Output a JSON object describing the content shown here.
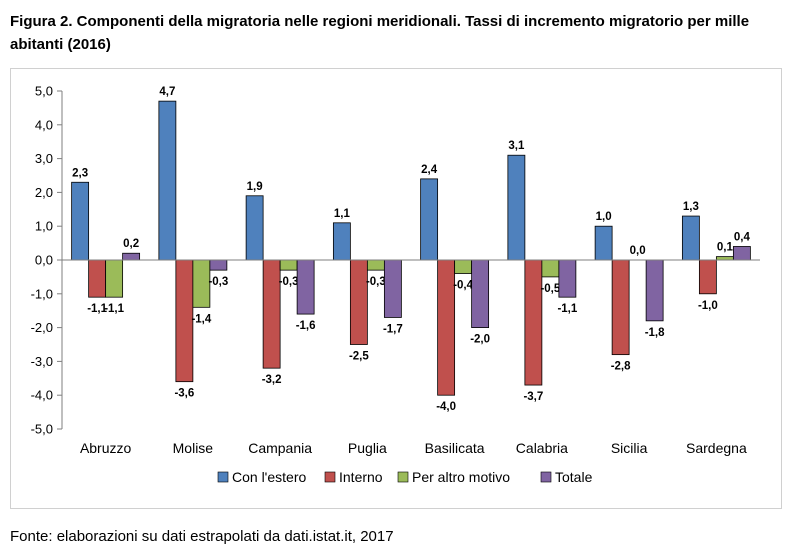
{
  "title": "Figura 2. Componenti della migratoria nelle regioni meridionali. Tassi di incremento migratorio per mille abitanti (2016)",
  "source": "Fonte: elaborazioni su dati estrapolati da dati.istat.it, 2017",
  "chart_data": {
    "type": "bar",
    "title": "Figura 2. Componenti della migratoria nelle regioni meridionali. Tassi di incremento migratorio per mille abitanti (2016)",
    "categories": [
      "Abruzzo",
      "Molise",
      "Campania",
      "Puglia",
      "Basilicata",
      "Calabria",
      "Sicilia",
      "Sardegna"
    ],
    "series": [
      {
        "name": "Con l'estero",
        "color": "#4f81bd",
        "values": [
          2.3,
          4.7,
          1.9,
          1.1,
          2.4,
          3.1,
          1.0,
          1.3
        ],
        "labels": [
          "2,3",
          "4,7",
          "1,9",
          "1,1",
          "2,4",
          "3,1",
          "1,0",
          "1,3"
        ]
      },
      {
        "name": "Interno",
        "color": "#c0504d",
        "values": [
          -1.1,
          -3.6,
          -3.2,
          -2.5,
          -4.0,
          -3.7,
          -2.8,
          -1.0
        ],
        "labels": [
          "-1,1",
          "-3,6",
          "-3,2",
          "-2,5",
          "-4,0",
          "-3,7",
          "-2,8",
          "-1,0"
        ]
      },
      {
        "name": "Per altro motivo",
        "color": "#9bbb59",
        "values": [
          -1.1,
          -1.4,
          -0.3,
          -0.3,
          -0.4,
          -0.5,
          0.0,
          0.1
        ],
        "labels": [
          "-1,1",
          "-1,4",
          "-0,3",
          "-0,3",
          "-0,4",
          "-0,5",
          "0,0",
          "0,1"
        ]
      },
      {
        "name": "Totale",
        "color": "#8064a2",
        "values": [
          0.2,
          -0.3,
          -1.6,
          -1.7,
          -2.0,
          -1.1,
          -1.8,
          0.4
        ],
        "labels": [
          "0,2",
          "-0,3",
          "-1,6",
          "-1,7",
          "-2,0",
          "-1,1",
          "-1,8",
          "0,4"
        ]
      }
    ],
    "ylim": [
      -5.0,
      5.0
    ],
    "yticks": [
      5.0,
      4.0,
      3.0,
      2.0,
      1.0,
      0.0,
      -1.0,
      -2.0,
      -3.0,
      -4.0,
      -5.0
    ],
    "ytick_labels": [
      "5,0",
      "4,0",
      "3,0",
      "2,0",
      "1,0",
      "0,0",
      "-1,0",
      "-2,0",
      "-3,0",
      "-4,0",
      "-5,0"
    ],
    "xlabel": "",
    "ylabel": "",
    "grid": false,
    "legend": "bottom"
  }
}
